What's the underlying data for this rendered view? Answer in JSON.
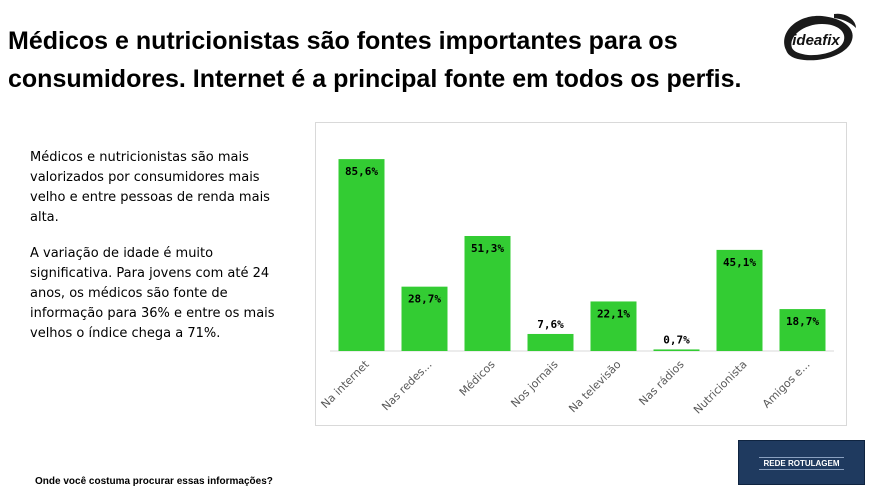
{
  "title": {
    "line1": "Médicos e nutricionistas são fontes importantes para os",
    "line2": "consumidores. Internet é a principal fonte em todos os perfis."
  },
  "logo": {
    "text": "ideafix"
  },
  "body": {
    "paragraph1": "Médicos e nutricionistas são mais valorizados por consumidores mais velho e entre pessoas de renda mais alta.",
    "paragraph2": "A variação de idade é muito significativa. Para jovens com até 24 anos, os médicos são fonte de informação para 36% e entre os mais velhos o índice chega a 71%."
  },
  "footer": {
    "question": "Onde você costuma procurar essas informações?",
    "badge": "REDE ROTULAGEM"
  },
  "colors": {
    "bar": "#33cc33",
    "axis": "#d9d9d9"
  },
  "chart_data": {
    "type": "bar",
    "categories": [
      "Na internet",
      "Nas redes...",
      "Médicos",
      "Nos jornais",
      "Na televisão",
      "Nas rádios",
      "Nutricionista",
      "Amigos e..."
    ],
    "values": [
      85.6,
      28.7,
      51.3,
      7.6,
      22.1,
      0.7,
      45.1,
      18.7
    ],
    "data_labels": [
      "85,6%",
      "28,7%",
      "51,3%",
      "7,6%",
      "22,1%",
      "0,7%",
      "45,1%",
      "18,7%"
    ],
    "title": "",
    "xlabel": "",
    "ylabel": "",
    "ylim": [
      0,
      90
    ],
    "grid": false,
    "legend": "none"
  }
}
